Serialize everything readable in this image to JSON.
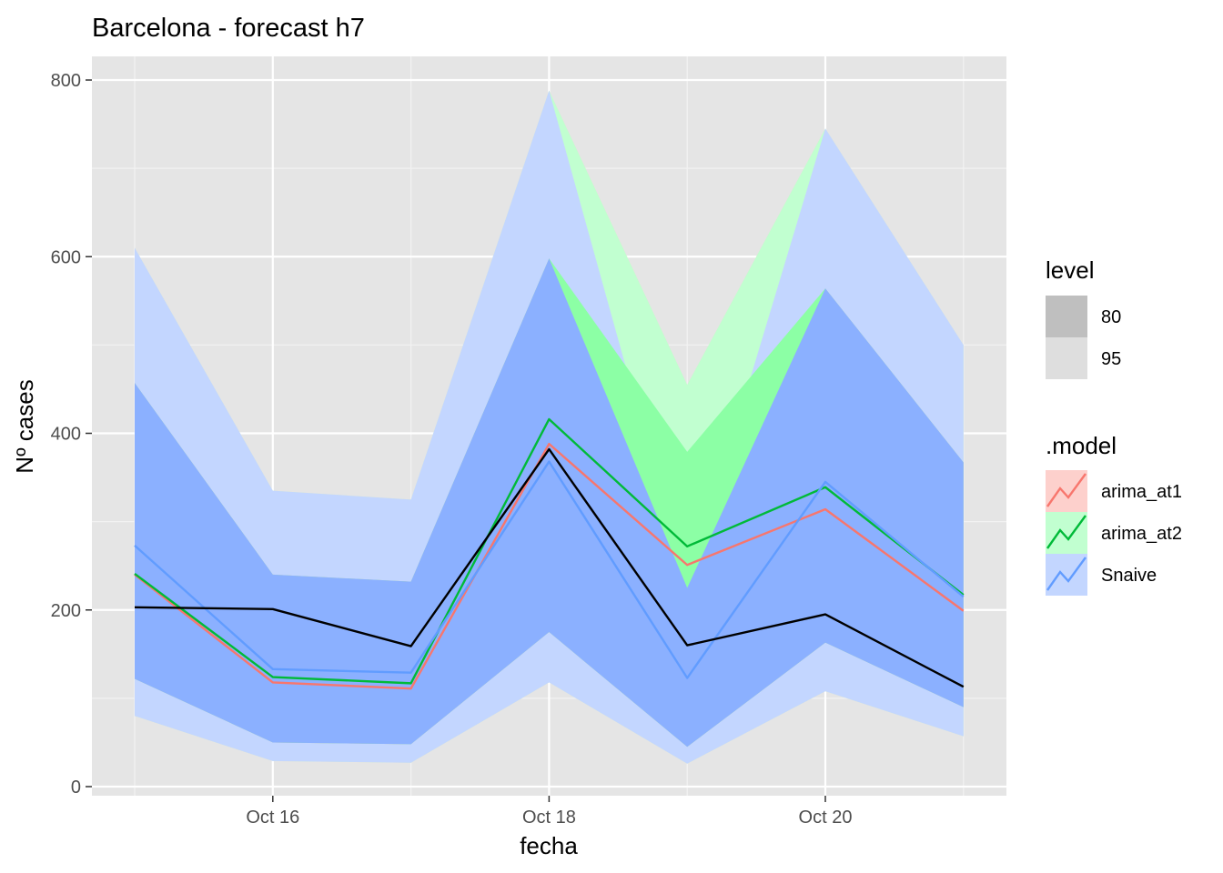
{
  "chart_data": {
    "type": "line",
    "title": "Barcelona - forecast h7",
    "xlabel": "fecha",
    "ylabel": "Nº cases",
    "x": [
      "Oct 15",
      "Oct 16",
      "Oct 17",
      "Oct 18",
      "Oct 19",
      "Oct 20",
      "Oct 21"
    ],
    "x_tick_labels": [
      "Oct 16",
      "Oct 18",
      "Oct 20"
    ],
    "y_ticks": [
      0,
      200,
      400,
      600,
      800
    ],
    "xlim": [
      "Oct 14.7",
      "Oct 21.3"
    ],
    "ylim": [
      -10,
      800
    ],
    "grid": true,
    "actual": {
      "name": "",
      "color": "#000000",
      "values": [
        203,
        201,
        159,
        382,
        160,
        195,
        113
      ]
    },
    "series": [
      {
        "name": "arima_at1",
        "color": "#F8766D",
        "fill": "#F8766D",
        "values": [
          240,
          118,
          111,
          388,
          251,
          314,
          199
        ],
        "lower80": [
          122,
          50,
          48,
          175,
          45,
          163,
          90
        ],
        "upper80": [
          457,
          240,
          232,
          598,
          316,
          564,
          367
        ],
        "lower95": [
          80,
          29,
          27,
          118,
          26,
          108,
          57
        ],
        "upper95": [
          610,
          335,
          325,
          788,
          455,
          745,
          500
        ]
      },
      {
        "name": "arima_at2",
        "color": "#00BA38",
        "fill": "#00BA38",
        "values": [
          241,
          124,
          117,
          416,
          272,
          339,
          217
        ],
        "lower80": [
          122,
          50,
          48,
          175,
          45,
          163,
          90
        ],
        "upper80": [
          457,
          240,
          232,
          598,
          379,
          564,
          367
        ],
        "lower95": [
          80,
          29,
          27,
          118,
          26,
          108,
          57
        ],
        "upper95": [
          610,
          335,
          325,
          788,
          455,
          745,
          500
        ]
      },
      {
        "name": "Snaive",
        "color": "#619CFF",
        "fill": "#619CFF",
        "values": [
          273,
          133,
          129,
          368,
          123,
          345,
          215
        ],
        "lower80": [
          122,
          50,
          48,
          175,
          45,
          163,
          90
        ],
        "upper80": [
          457,
          240,
          232,
          598,
          225,
          564,
          367
        ],
        "lower95": [
          80,
          29,
          27,
          118,
          26,
          108,
          57
        ],
        "upper95": [
          610,
          335,
          325,
          788,
          225,
          745,
          500
        ]
      }
    ],
    "legend": {
      "placement": "right",
      "level": {
        "title": "level",
        "items": [
          "80",
          "95"
        ]
      },
      "model": {
        "title": ".model",
        "items": [
          "arima_at1",
          "arima_at2",
          "Snaive"
        ]
      }
    }
  }
}
